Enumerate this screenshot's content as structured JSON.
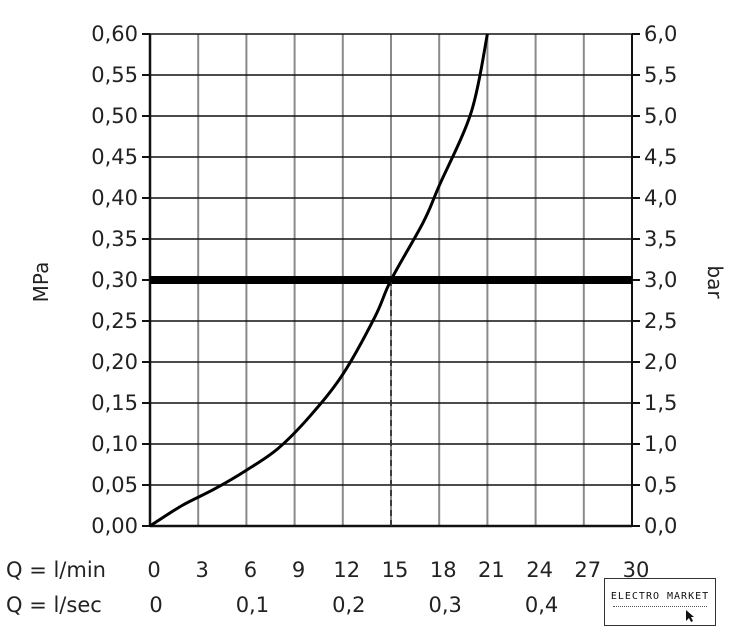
{
  "chart_data": {
    "type": "line",
    "title": "",
    "y_left": {
      "label": "MPa",
      "min": 0.0,
      "max": 0.6,
      "step": 0.05,
      "ticks": [
        "0,00",
        "0,05",
        "0,10",
        "0,15",
        "0,20",
        "0,25",
        "0,30",
        "0,35",
        "0,40",
        "0,45",
        "0,50",
        "0,55",
        "0,60"
      ]
    },
    "y_right": {
      "label": "bar",
      "min": 0.0,
      "max": 6.0,
      "step": 0.5,
      "ticks": [
        "0,0",
        "0,5",
        "1,0",
        "1,5",
        "2,0",
        "2,5",
        "3,0",
        "3,5",
        "4,0",
        "4,5",
        "5,0",
        "5,5",
        "6,0"
      ]
    },
    "x_lmin": {
      "label": "Q = l/min",
      "min": 0,
      "max": 30,
      "step": 3,
      "ticks": [
        "0",
        "3",
        "6",
        "9",
        "12",
        "15",
        "18",
        "21",
        "24",
        "27",
        "30"
      ]
    },
    "x_lsec": {
      "label": "Q = l/sec",
      "ticks": [
        {
          "value": 0,
          "text": "0"
        },
        {
          "value": 0.1,
          "text": "0,1"
        },
        {
          "value": 0.2,
          "text": "0,2"
        },
        {
          "value": 0.3,
          "text": "0,3"
        },
        {
          "value": 0.4,
          "text": "0,4"
        }
      ]
    },
    "grid": true,
    "series": [
      {
        "points": [
          [
            0,
            0.0
          ],
          [
            2,
            0.025
          ],
          [
            4,
            0.045
          ],
          [
            6,
            0.068
          ],
          [
            8,
            0.095
          ],
          [
            10,
            0.135
          ],
          [
            12,
            0.185
          ],
          [
            14,
            0.255
          ],
          [
            15,
            0.3
          ],
          [
            17,
            0.37
          ],
          [
            18,
            0.415
          ],
          [
            20,
            0.505
          ],
          [
            21,
            0.6
          ]
        ]
      }
    ],
    "reference_line": {
      "y": 0.3
    },
    "marker_line": {
      "x": 15,
      "y": 0.3,
      "style": "dashed"
    }
  },
  "watermark": {
    "text": "ELECTRO MARKET"
  }
}
